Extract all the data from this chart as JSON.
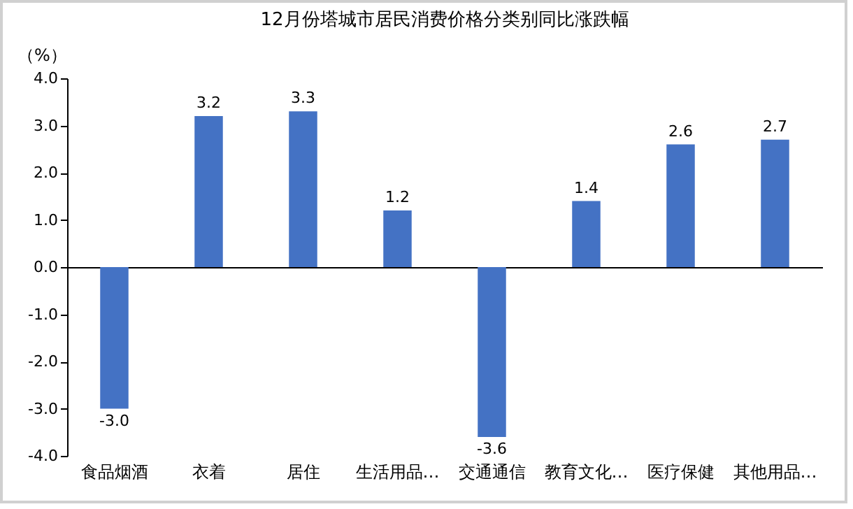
{
  "chart_data": {
    "type": "bar",
    "title": "12月份塔城市居民消费价格分类别同比涨跌幅",
    "ylabel": "（%）",
    "categories": [
      "食品烟酒",
      "衣着",
      "居住",
      "生活用品…",
      "交通通信",
      "教育文化…",
      "医疗保健",
      "其他用品…"
    ],
    "values": [
      -3.0,
      3.2,
      3.3,
      1.2,
      -3.6,
      1.4,
      2.6,
      2.7
    ],
    "color": "#4472c4",
    "ylim": [
      -4,
      4
    ],
    "yticks": [
      {
        "value": -4,
        "label": "-4.0"
      },
      {
        "value": -3,
        "label": "-3.0"
      },
      {
        "value": -2,
        "label": "-2.0"
      },
      {
        "value": -1,
        "label": "-1.0"
      },
      {
        "value": 0,
        "label": "0.0"
      },
      {
        "value": 1,
        "label": "1.0"
      },
      {
        "value": 2,
        "label": "2.0"
      },
      {
        "value": 3,
        "label": "3.0"
      },
      {
        "value": 4,
        "label": "4.0"
      }
    ],
    "value_labels": [
      "-3.0",
      "3.2",
      "3.3",
      "1.2",
      "-3.6",
      "1.4",
      "2.6",
      "2.7"
    ]
  }
}
